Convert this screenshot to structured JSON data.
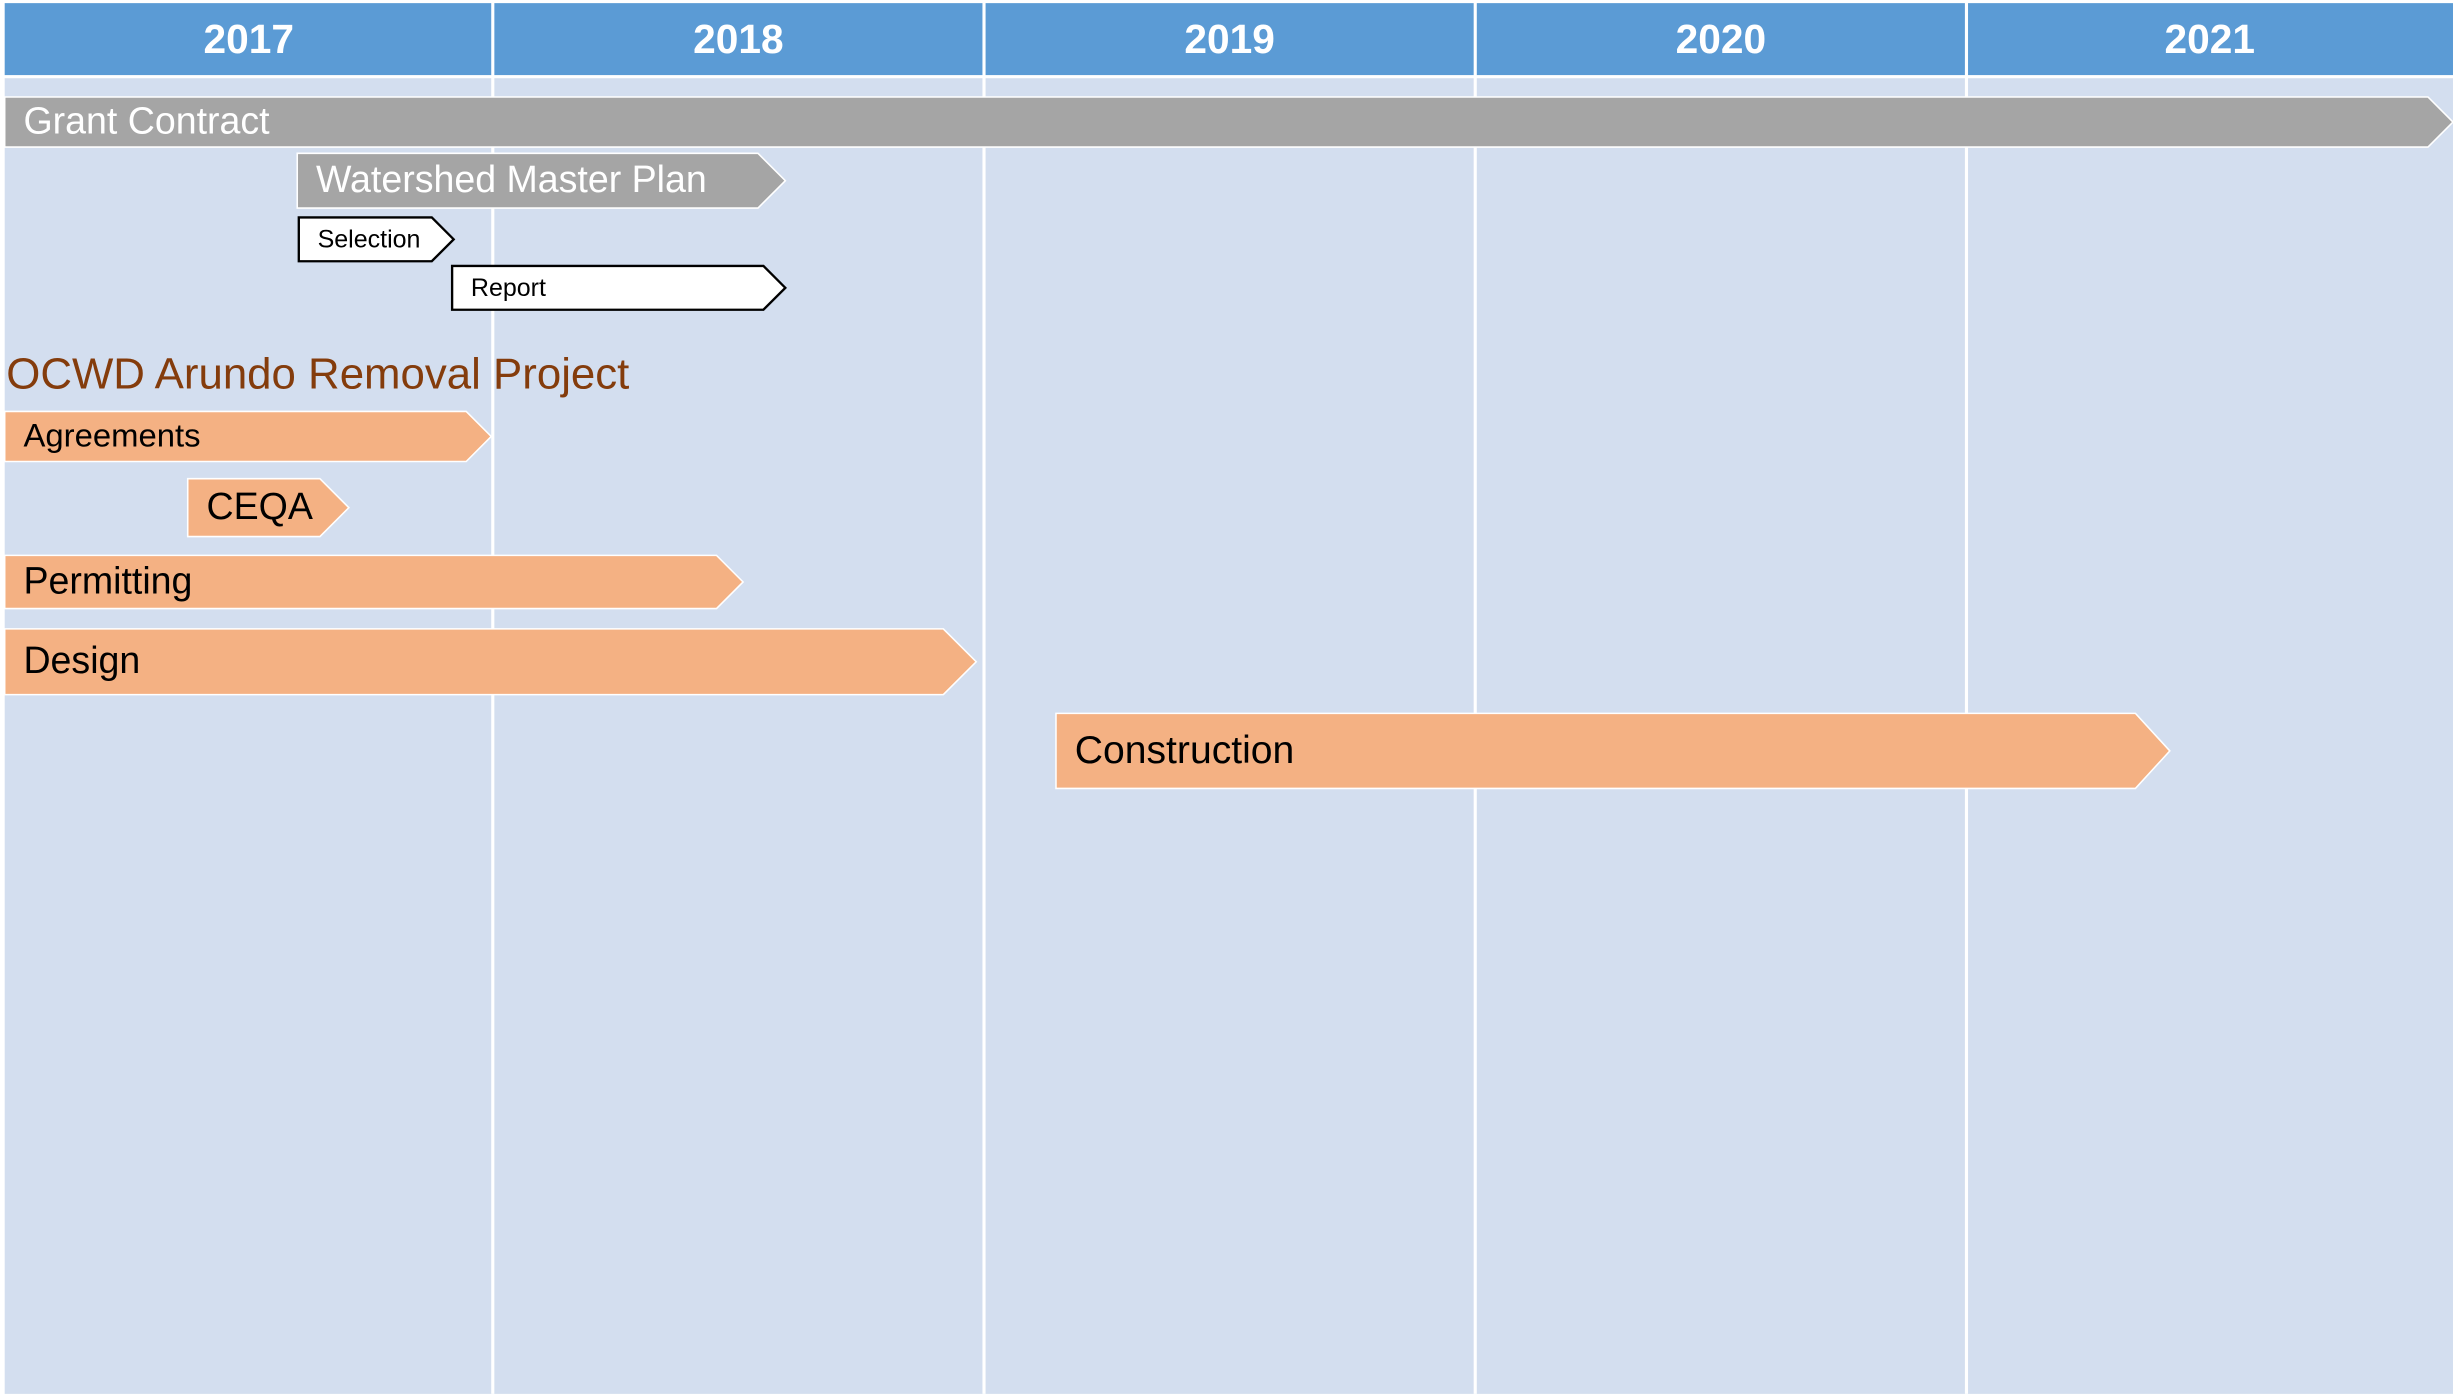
{
  "timeline": {
    "years": [
      "2017",
      "2018",
      "2019",
      "2020",
      "2021"
    ],
    "section_title": "OCWD Arundo Removal Project",
    "bars": [
      {
        "label": "Grant Contract"
      },
      {
        "label": "Watershed Master Plan"
      },
      {
        "label": "Selection"
      },
      {
        "label": "Report"
      },
      {
        "label": "Agreements"
      },
      {
        "label": "CEQA"
      },
      {
        "label": "Permitting"
      },
      {
        "label": "Design"
      },
      {
        "label": "Construction"
      }
    ]
  }
}
